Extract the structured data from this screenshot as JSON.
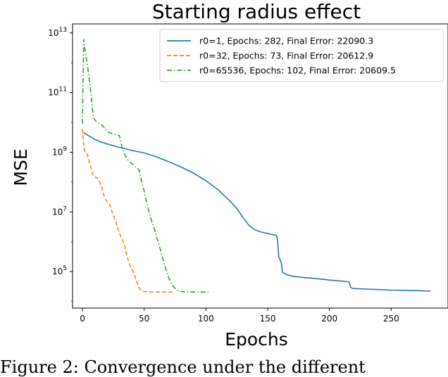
{
  "chart_data": {
    "type": "line",
    "title": "Starting radius effect",
    "xlabel": "Epochs",
    "ylabel": "MSE",
    "xscale": "linear",
    "yscale": "log",
    "xlim": [
      -8,
      296
    ],
    "ylim": [
      6000,
      20000000000000
    ],
    "xticks": [
      0,
      50,
      100,
      150,
      200,
      250
    ],
    "xtick_labels": [
      "0",
      "50",
      "100",
      "150",
      "200",
      "250"
    ],
    "yticks": [
      100000,
      10000000,
      1000000000,
      100000000000,
      10000000000000
    ],
    "ytick_labels": [
      {
        "base": "10",
        "exp": "5"
      },
      {
        "base": "10",
        "exp": "7"
      },
      {
        "base": "10",
        "exp": "9"
      },
      {
        "base": "10",
        "exp": "11"
      },
      {
        "base": "10",
        "exp": "13"
      }
    ],
    "grid": false,
    "legend_position": "top-right",
    "series": [
      {
        "name": "r0=1, Epochs: 282, Final Error: 22090.3",
        "color": "#1f77b4",
        "dash": "solid",
        "x": [
          1,
          5,
          10,
          15,
          20,
          25,
          30,
          35,
          40,
          50,
          60,
          70,
          80,
          90,
          100,
          110,
          120,
          125,
          130,
          135,
          140,
          145,
          150,
          155,
          157,
          158,
          159,
          160,
          161,
          162,
          165,
          170,
          180,
          190,
          200,
          210,
          215,
          216,
          217,
          218,
          220,
          230,
          240,
          250,
          260,
          270,
          282
        ],
        "y": [
          4500000000,
          3600000000,
          2700000000,
          2200000000,
          1900000000,
          1650000000,
          1450000000,
          1300000000,
          1150000000,
          950000000,
          700000000,
          480000000,
          320000000,
          200000000,
          110000000,
          55000000,
          22000000,
          13000000,
          6500000,
          3500000,
          2500000,
          2100000,
          1900000,
          1700000,
          1650000,
          1200000,
          300000,
          250000,
          200000,
          95000,
          80000,
          70000,
          63000,
          58000,
          52000,
          48000,
          46000,
          45000,
          31000,
          28000,
          27000,
          26000,
          25000,
          24000,
          23500,
          23000,
          22090.3
        ]
      },
      {
        "name": "r0=32, Epochs: 73, Final Error: 20612.9",
        "color": "#ff7f0e",
        "dash": "dashed",
        "x": [
          0,
          1,
          2,
          3,
          4,
          5,
          6,
          7,
          8,
          9,
          10,
          11,
          12,
          13,
          14,
          15,
          16,
          17,
          18,
          19,
          20,
          21,
          22,
          23,
          24,
          25,
          26,
          27,
          28,
          29,
          30,
          31,
          32,
          33,
          34,
          35,
          36,
          37,
          38,
          39,
          40,
          41,
          42,
          43,
          44,
          45,
          46,
          47,
          48,
          49,
          50,
          55,
          60,
          65,
          73
        ],
        "y": [
          6000000000,
          1800000000,
          1000000000,
          900000000,
          850000000,
          600000000,
          400000000,
          300000000,
          200000000,
          160000000,
          150000000,
          140000000,
          140000000,
          120000000,
          100000000,
          80000000,
          60000000,
          40000000,
          30000000,
          25000000,
          22000000,
          20000000,
          18000000,
          13000000,
          10000000,
          8000000,
          6000000,
          5000000,
          3500000,
          2500000,
          2000000,
          1500000,
          1300000,
          1000000,
          800000,
          500000,
          350000,
          250000,
          180000,
          140000,
          120000,
          100000,
          80000,
          60000,
          45000,
          35000,
          28000,
          25000,
          23000,
          22000,
          21500,
          21000,
          20800,
          20700,
          20612.9
        ]
      },
      {
        "name": "r0=65536, Epochs: 102, Final Error: 20609.5",
        "color": "#2ca02c",
        "dash": "dashdot",
        "x": [
          0,
          1,
          2,
          3,
          4,
          5,
          6,
          7,
          8,
          9,
          10,
          12,
          14,
          16,
          18,
          20,
          22,
          24,
          26,
          28,
          30,
          32,
          34,
          36,
          38,
          40,
          42,
          44,
          46,
          48,
          50,
          52,
          54,
          56,
          58,
          60,
          62,
          64,
          66,
          68,
          70,
          72,
          74,
          76,
          78,
          80,
          85,
          90,
          95,
          102
        ],
        "y": [
          9000000000,
          6000000000000,
          3000000000000,
          1500000000000,
          900000000000,
          400000000000,
          200000000000,
          80000000000,
          30000000000,
          15000000000,
          12000000000,
          10000000000,
          9000000000,
          8000000000,
          6500000000,
          5000000000,
          4500000000,
          4200000000,
          4000000000,
          3800000000,
          3600000000,
          1500000000,
          900000000,
          600000000,
          500000000,
          420000000,
          350000000,
          300000000,
          250000000,
          100000000,
          50000000,
          20000000,
          10000000,
          5000000,
          3000000,
          1500000,
          800000,
          400000,
          200000,
          100000,
          60000,
          40000,
          30000,
          25000,
          22000,
          21500,
          21000,
          20800,
          20700,
          20609.5
        ]
      }
    ]
  },
  "caption_text": "Figure 2: Convergence under the different"
}
